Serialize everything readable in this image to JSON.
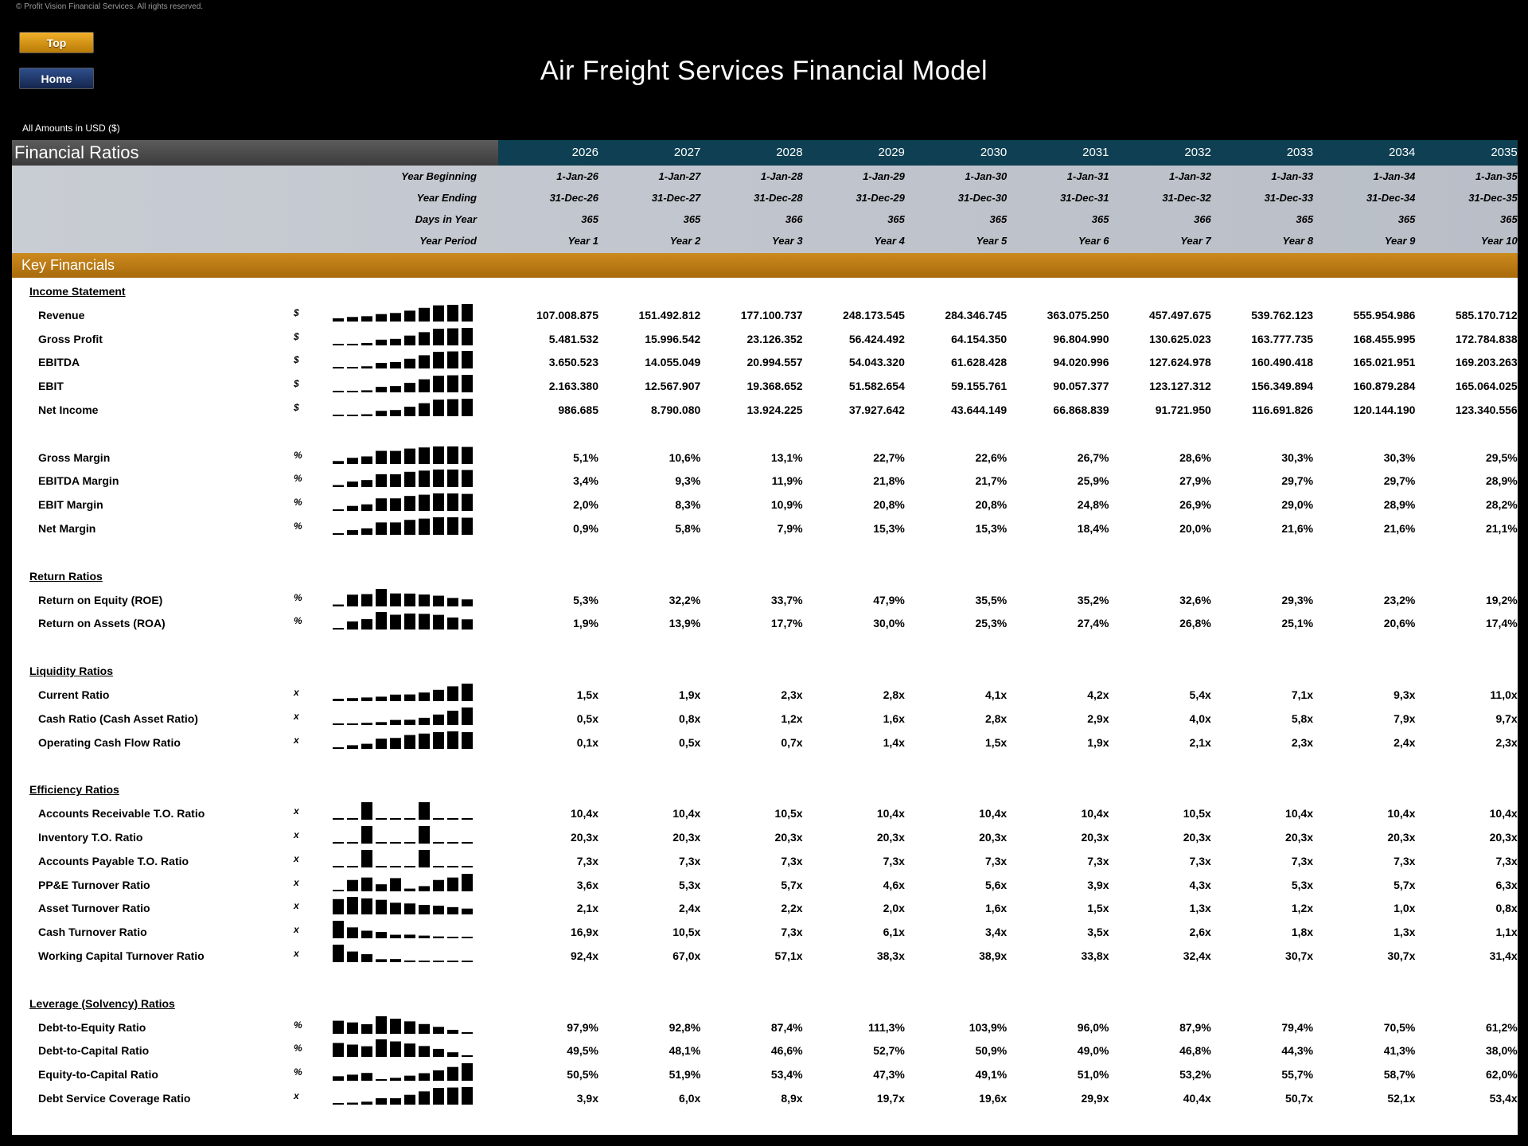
{
  "copyright": "© Profit Vision Financial Services. All rights reserved.",
  "nav": {
    "top_label": "Top",
    "home_label": "Home"
  },
  "title": "Air Freight Services Financial Model",
  "currency_note": "All Amounts in  USD ($)",
  "header": {
    "section_label": "Financial Ratios",
    "years": [
      "2026",
      "2027",
      "2028",
      "2029",
      "2030",
      "2031",
      "2032",
      "2033",
      "2034",
      "2035"
    ]
  },
  "meta": {
    "year_beginning_label": "Year Beginning",
    "year_beginning": [
      "1-Jan-26",
      "1-Jan-27",
      "1-Jan-28",
      "1-Jan-29",
      "1-Jan-30",
      "1-Jan-31",
      "1-Jan-32",
      "1-Jan-33",
      "1-Jan-34",
      "1-Jan-35"
    ],
    "year_ending_label": "Year Ending",
    "year_ending": [
      "31-Dec-26",
      "31-Dec-27",
      "31-Dec-28",
      "31-Dec-29",
      "31-Dec-30",
      "31-Dec-31",
      "31-Dec-32",
      "31-Dec-33",
      "31-Dec-34",
      "31-Dec-35"
    ],
    "days_label": "Days in Year",
    "days": [
      "365",
      "365",
      "366",
      "365",
      "365",
      "365",
      "366",
      "365",
      "365",
      "365"
    ],
    "period_label": "Year Period",
    "period": [
      "Year 1",
      "Year 2",
      "Year 3",
      "Year 4",
      "Year 5",
      "Year 6",
      "Year 7",
      "Year 8",
      "Year 9",
      "Year 10"
    ]
  },
  "key_financials_label": "Key Financials",
  "sections": [
    {
      "title": "Income Statement",
      "rows": [
        {
          "label": "Revenue",
          "unit": "$",
          "values": [
            "107.008.875",
            "151.492.812",
            "177.100.737",
            "248.173.545",
            "284.346.745",
            "363.075.250",
            "457.497.675",
            "539.762.123",
            "555.954.986",
            "585.170.712"
          ],
          "spark": [
            107.0,
            151.5,
            177.1,
            248.2,
            284.3,
            363.1,
            457.5,
            539.8,
            556.0,
            585.2
          ]
        },
        {
          "label": "Gross Profit",
          "unit": "$",
          "values": [
            "5.481.532",
            "15.996.542",
            "23.126.352",
            "56.424.492",
            "64.154.350",
            "96.804.990",
            "130.625.023",
            "163.777.735",
            "168.455.995",
            "172.784.838"
          ],
          "spark": [
            5.5,
            16.0,
            23.1,
            56.4,
            64.2,
            96.8,
            130.6,
            163.8,
            168.5,
            172.8
          ]
        },
        {
          "label": "EBITDA",
          "unit": "$",
          "values": [
            "3.650.523",
            "14.055.049",
            "20.994.557",
            "54.043.320",
            "61.628.428",
            "94.020.996",
            "127.624.978",
            "160.490.418",
            "165.021.951",
            "169.203.263"
          ],
          "spark": [
            3.7,
            14.1,
            21.0,
            54.0,
            61.6,
            94.0,
            127.6,
            160.5,
            165.0,
            169.2
          ]
        },
        {
          "label": "EBIT",
          "unit": "$",
          "values": [
            "2.163.380",
            "12.567.907",
            "19.368.652",
            "51.582.654",
            "59.155.761",
            "90.057.377",
            "123.127.312",
            "156.349.894",
            "160.879.284",
            "165.064.025"
          ],
          "spark": [
            2.2,
            12.6,
            19.4,
            51.6,
            59.2,
            90.1,
            123.1,
            156.3,
            160.9,
            165.1
          ]
        },
        {
          "label": "Net Income",
          "unit": "$",
          "values": [
            "986.685",
            "8.790.080",
            "13.924.225",
            "37.927.642",
            "43.644.149",
            "66.868.839",
            "91.721.950",
            "116.691.826",
            "120.144.190",
            "123.340.556"
          ],
          "spark": [
            1.0,
            8.8,
            13.9,
            37.9,
            43.6,
            66.9,
            91.7,
            116.7,
            120.1,
            123.3
          ]
        },
        {
          "gap": true
        },
        {
          "label": "Gross Margin",
          "unit": "%",
          "values": [
            "5,1%",
            "10,6%",
            "13,1%",
            "22,7%",
            "22,6%",
            "26,7%",
            "28,6%",
            "30,3%",
            "30,3%",
            "29,5%"
          ],
          "spark": [
            5.1,
            10.6,
            13.1,
            22.7,
            22.6,
            26.7,
            28.6,
            30.3,
            30.3,
            29.5
          ]
        },
        {
          "label": "EBITDA Margin",
          "unit": "%",
          "values": [
            "3,4%",
            "9,3%",
            "11,9%",
            "21,8%",
            "21,7%",
            "25,9%",
            "27,9%",
            "29,7%",
            "29,7%",
            "28,9%"
          ],
          "spark": [
            3.4,
            9.3,
            11.9,
            21.8,
            21.7,
            25.9,
            27.9,
            29.7,
            29.7,
            28.9
          ]
        },
        {
          "label": "EBIT Margin",
          "unit": "%",
          "values": [
            "2,0%",
            "8,3%",
            "10,9%",
            "20,8%",
            "20,8%",
            "24,8%",
            "26,9%",
            "29,0%",
            "28,9%",
            "28,2%"
          ],
          "spark": [
            2.0,
            8.3,
            10.9,
            20.8,
            20.8,
            24.8,
            26.9,
            29.0,
            28.9,
            28.2
          ]
        },
        {
          "label": "Net Margin",
          "unit": "%",
          "values": [
            "0,9%",
            "5,8%",
            "7,9%",
            "15,3%",
            "15,3%",
            "18,4%",
            "20,0%",
            "21,6%",
            "21,6%",
            "21,1%"
          ],
          "spark": [
            0.9,
            5.8,
            7.9,
            15.3,
            15.3,
            18.4,
            20.0,
            21.6,
            21.6,
            21.1
          ]
        }
      ]
    },
    {
      "title": "Return Ratios",
      "rows": [
        {
          "label": "Return on Equity (ROE)",
          "unit": "%",
          "values": [
            "5,3%",
            "32,2%",
            "33,7%",
            "47,9%",
            "35,5%",
            "35,2%",
            "32,6%",
            "29,3%",
            "23,2%",
            "19,2%"
          ],
          "spark": [
            5.3,
            32.2,
            33.7,
            47.9,
            35.5,
            35.2,
            32.6,
            29.3,
            23.2,
            19.2
          ]
        },
        {
          "label": "Return on Assets (ROA)",
          "unit": "%",
          "values": [
            "1,9%",
            "13,9%",
            "17,7%",
            "30,0%",
            "25,3%",
            "27,4%",
            "26,8%",
            "25,1%",
            "20,6%",
            "17,4%"
          ],
          "spark": [
            1.9,
            13.9,
            17.7,
            30.0,
            25.3,
            27.4,
            26.8,
            25.1,
            20.6,
            17.4
          ]
        }
      ]
    },
    {
      "title": "Liquidity Ratios",
      "rows": [
        {
          "label": "Current Ratio",
          "unit": "x",
          "values": [
            "1,5x",
            "1,9x",
            "2,3x",
            "2,8x",
            "4,1x",
            "4,2x",
            "5,4x",
            "7,1x",
            "9,3x",
            "11,0x"
          ],
          "spark": [
            1.5,
            1.9,
            2.3,
            2.8,
            4.1,
            4.2,
            5.4,
            7.1,
            9.3,
            11.0
          ]
        },
        {
          "label": "Cash Ratio (Cash Asset Ratio)",
          "unit": "x",
          "values": [
            "0,5x",
            "0,8x",
            "1,2x",
            "1,6x",
            "2,8x",
            "2,9x",
            "4,0x",
            "5,8x",
            "7,9x",
            "9,7x"
          ],
          "spark": [
            0.5,
            0.8,
            1.2,
            1.6,
            2.8,
            2.9,
            4.0,
            5.8,
            7.9,
            9.7
          ]
        },
        {
          "label": "Operating Cash Flow Ratio",
          "unit": "x",
          "values": [
            "0,1x",
            "0,5x",
            "0,7x",
            "1,4x",
            "1,5x",
            "1,9x",
            "2,1x",
            "2,3x",
            "2,4x",
            "2,3x"
          ],
          "spark": [
            0.1,
            0.5,
            0.7,
            1.4,
            1.5,
            1.9,
            2.1,
            2.3,
            2.4,
            2.3
          ]
        }
      ]
    },
    {
      "title": "Efficiency Ratios",
      "rows": [
        {
          "label": "Accounts Receivable T.O. Ratio",
          "unit": "x",
          "values": [
            "10,4x",
            "10,4x",
            "10,5x",
            "10,4x",
            "10,4x",
            "10,4x",
            "10,5x",
            "10,4x",
            "10,4x",
            "10,4x"
          ],
          "spark": [
            10.4,
            10.4,
            10.5,
            10.4,
            10.4,
            10.4,
            10.5,
            10.4,
            10.4,
            10.4
          ],
          "min_based": true
        },
        {
          "label": "Inventory T.O. Ratio",
          "unit": "x",
          "values": [
            "20,3x",
            "20,3x",
            "20,3x",
            "20,3x",
            "20,3x",
            "20,3x",
            "20,3x",
            "20,3x",
            "20,3x",
            "20,3x"
          ],
          "spark": [
            20.3,
            20.3,
            20.4,
            20.3,
            20.3,
            20.3,
            20.4,
            20.3,
            20.3,
            20.3
          ],
          "min_based": true
        },
        {
          "label": "Accounts Payable T.O. Ratio",
          "unit": "x",
          "values": [
            "7,3x",
            "7,3x",
            "7,3x",
            "7,3x",
            "7,3x",
            "7,3x",
            "7,3x",
            "7,3x",
            "7,3x",
            "7,3x"
          ],
          "spark": [
            7.3,
            7.3,
            7.4,
            7.3,
            7.3,
            7.3,
            7.4,
            7.3,
            7.3,
            7.3
          ],
          "min_based": true
        },
        {
          "label": "PP&E Turnover Ratio",
          "unit": "x",
          "values": [
            "3,6x",
            "5,3x",
            "5,7x",
            "4,6x",
            "5,6x",
            "3,9x",
            "4,3x",
            "5,3x",
            "5,7x",
            "6,3x"
          ],
          "spark": [
            3.6,
            5.3,
            5.7,
            4.6,
            5.6,
            3.9,
            4.3,
            5.3,
            5.7,
            6.3
          ],
          "min_based": true
        },
        {
          "label": "Asset Turnover Ratio",
          "unit": "x",
          "values": [
            "2,1x",
            "2,4x",
            "2,2x",
            "2,0x",
            "1,6x",
            "1,5x",
            "1,3x",
            "1,2x",
            "1,0x",
            "0,8x"
          ],
          "spark": [
            2.1,
            2.4,
            2.2,
            2.0,
            1.6,
            1.5,
            1.3,
            1.2,
            1.0,
            0.8
          ]
        },
        {
          "label": "Cash Turnover Ratio",
          "unit": "x",
          "values": [
            "16,9x",
            "10,5x",
            "7,3x",
            "6,1x",
            "3,4x",
            "3,5x",
            "2,6x",
            "1,8x",
            "1,3x",
            "1,1x"
          ],
          "spark": [
            16.9,
            10.5,
            7.3,
            6.1,
            3.4,
            3.5,
            2.6,
            1.8,
            1.3,
            1.1
          ]
        },
        {
          "label": "Working Capital Turnover Ratio",
          "unit": "x",
          "values": [
            "92,4x",
            "67,0x",
            "57,1x",
            "38,3x",
            "38,9x",
            "33,8x",
            "32,4x",
            "30,7x",
            "30,7x",
            "31,4x"
          ],
          "spark": [
            92.4,
            67.0,
            57.1,
            38.3,
            38.9,
            33.8,
            32.4,
            30.7,
            30.7,
            31.4
          ],
          "min_based": true
        }
      ]
    },
    {
      "title": "Leverage (Solvency) Ratios",
      "rows": [
        {
          "label": "Debt-to-Equity Ratio",
          "unit": "%",
          "values": [
            "97,9%",
            "92,8%",
            "87,4%",
            "111,3%",
            "103,9%",
            "96,0%",
            "87,9%",
            "79,4%",
            "70,5%",
            "61,2%"
          ],
          "spark": [
            97.9,
            92.8,
            87.4,
            111.3,
            103.9,
            96.0,
            87.9,
            79.4,
            70.5,
            61.2
          ],
          "min_based": true
        },
        {
          "label": "Debt-to-Capital Ratio",
          "unit": "%",
          "values": [
            "49,5%",
            "48,1%",
            "46,6%",
            "52,7%",
            "50,9%",
            "49,0%",
            "46,8%",
            "44,3%",
            "41,3%",
            "38,0%"
          ],
          "spark": [
            49.5,
            48.1,
            46.6,
            52.7,
            50.9,
            49.0,
            46.8,
            44.3,
            41.3,
            38.0
          ],
          "min_based": true
        },
        {
          "label": "Equity-to-Capital Ratio",
          "unit": "%",
          "values": [
            "50,5%",
            "51,9%",
            "53,4%",
            "47,3%",
            "49,1%",
            "51,0%",
            "53,2%",
            "55,7%",
            "58,7%",
            "62,0%"
          ],
          "spark": [
            50.5,
            51.9,
            53.4,
            47.3,
            49.1,
            51.0,
            53.2,
            55.7,
            58.7,
            62.0
          ],
          "min_based": true
        },
        {
          "label": "Debt Service Coverage Ratio",
          "unit": "x",
          "values": [
            "3,9x",
            "6,0x",
            "8,9x",
            "19,7x",
            "19,6x",
            "29,9x",
            "40,4x",
            "50,7x",
            "52,1x",
            "53,4x"
          ],
          "spark": [
            3.9,
            6.0,
            8.9,
            19.7,
            19.6,
            29.9,
            40.4,
            50.7,
            52.1,
            53.4
          ]
        }
      ]
    }
  ]
}
